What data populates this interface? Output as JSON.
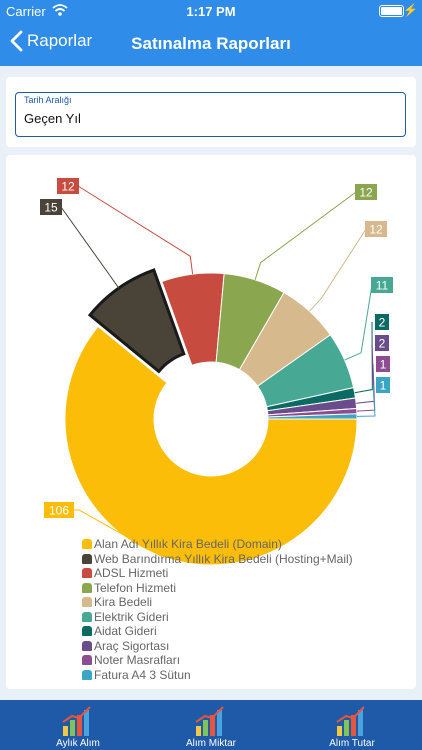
{
  "status": {
    "carrier": "Carrier",
    "time": "1:17 PM"
  },
  "nav": {
    "back_label": "Raporlar",
    "title": "Satınalma Raporları"
  },
  "filter": {
    "label": "Tarih Aralığı",
    "value": "Geçen Yıl"
  },
  "chart_data": {
    "type": "pie",
    "variant": "donut",
    "exploded": "Web Barındırma Yıllık Kira Bedeli (Hosting+Mail)",
    "slices": [
      {
        "label": "Alan Adı Yıllık Kira Bedeli (Domain)",
        "value": 106,
        "color": "#fbbd08"
      },
      {
        "label": "Web Barındırma Yıllık Kira Bedeli (Hosting+Mail)",
        "value": 15,
        "color": "#4a4338"
      },
      {
        "label": "ADSL Hizmeti",
        "value": 12,
        "color": "#c84b3f"
      },
      {
        "label": "Telefon Hizmeti",
        "value": 12,
        "color": "#8aa64e"
      },
      {
        "label": "Kira Bedeli",
        "value": 12,
        "color": "#d6b98c"
      },
      {
        "label": "Elektrik Gideri",
        "value": 11,
        "color": "#47a993"
      },
      {
        "label": "Aidat Gideri",
        "value": 2,
        "color": "#0b6b63"
      },
      {
        "label": "Araç Sigortası",
        "value": 2,
        "color": "#6a4c8c"
      },
      {
        "label": "Noter Masrafları",
        "value": 1,
        "color": "#8e4d93"
      },
      {
        "label": "Fatura A4 3 Sütun",
        "value": 1,
        "color": "#3aa5c4"
      }
    ],
    "legend_position": "bottom"
  },
  "tabs": [
    {
      "label": "Aylık Alım",
      "icon": "bar-chart-icon"
    },
    {
      "label": "Alım Miktar",
      "icon": "bar-chart-icon"
    },
    {
      "label": "Alım Tutar",
      "icon": "bar-chart-icon"
    }
  ],
  "colors": {
    "primary": "#2f8ce8",
    "tabbar": "#1e5aa8",
    "background": "#e9f0f8"
  }
}
